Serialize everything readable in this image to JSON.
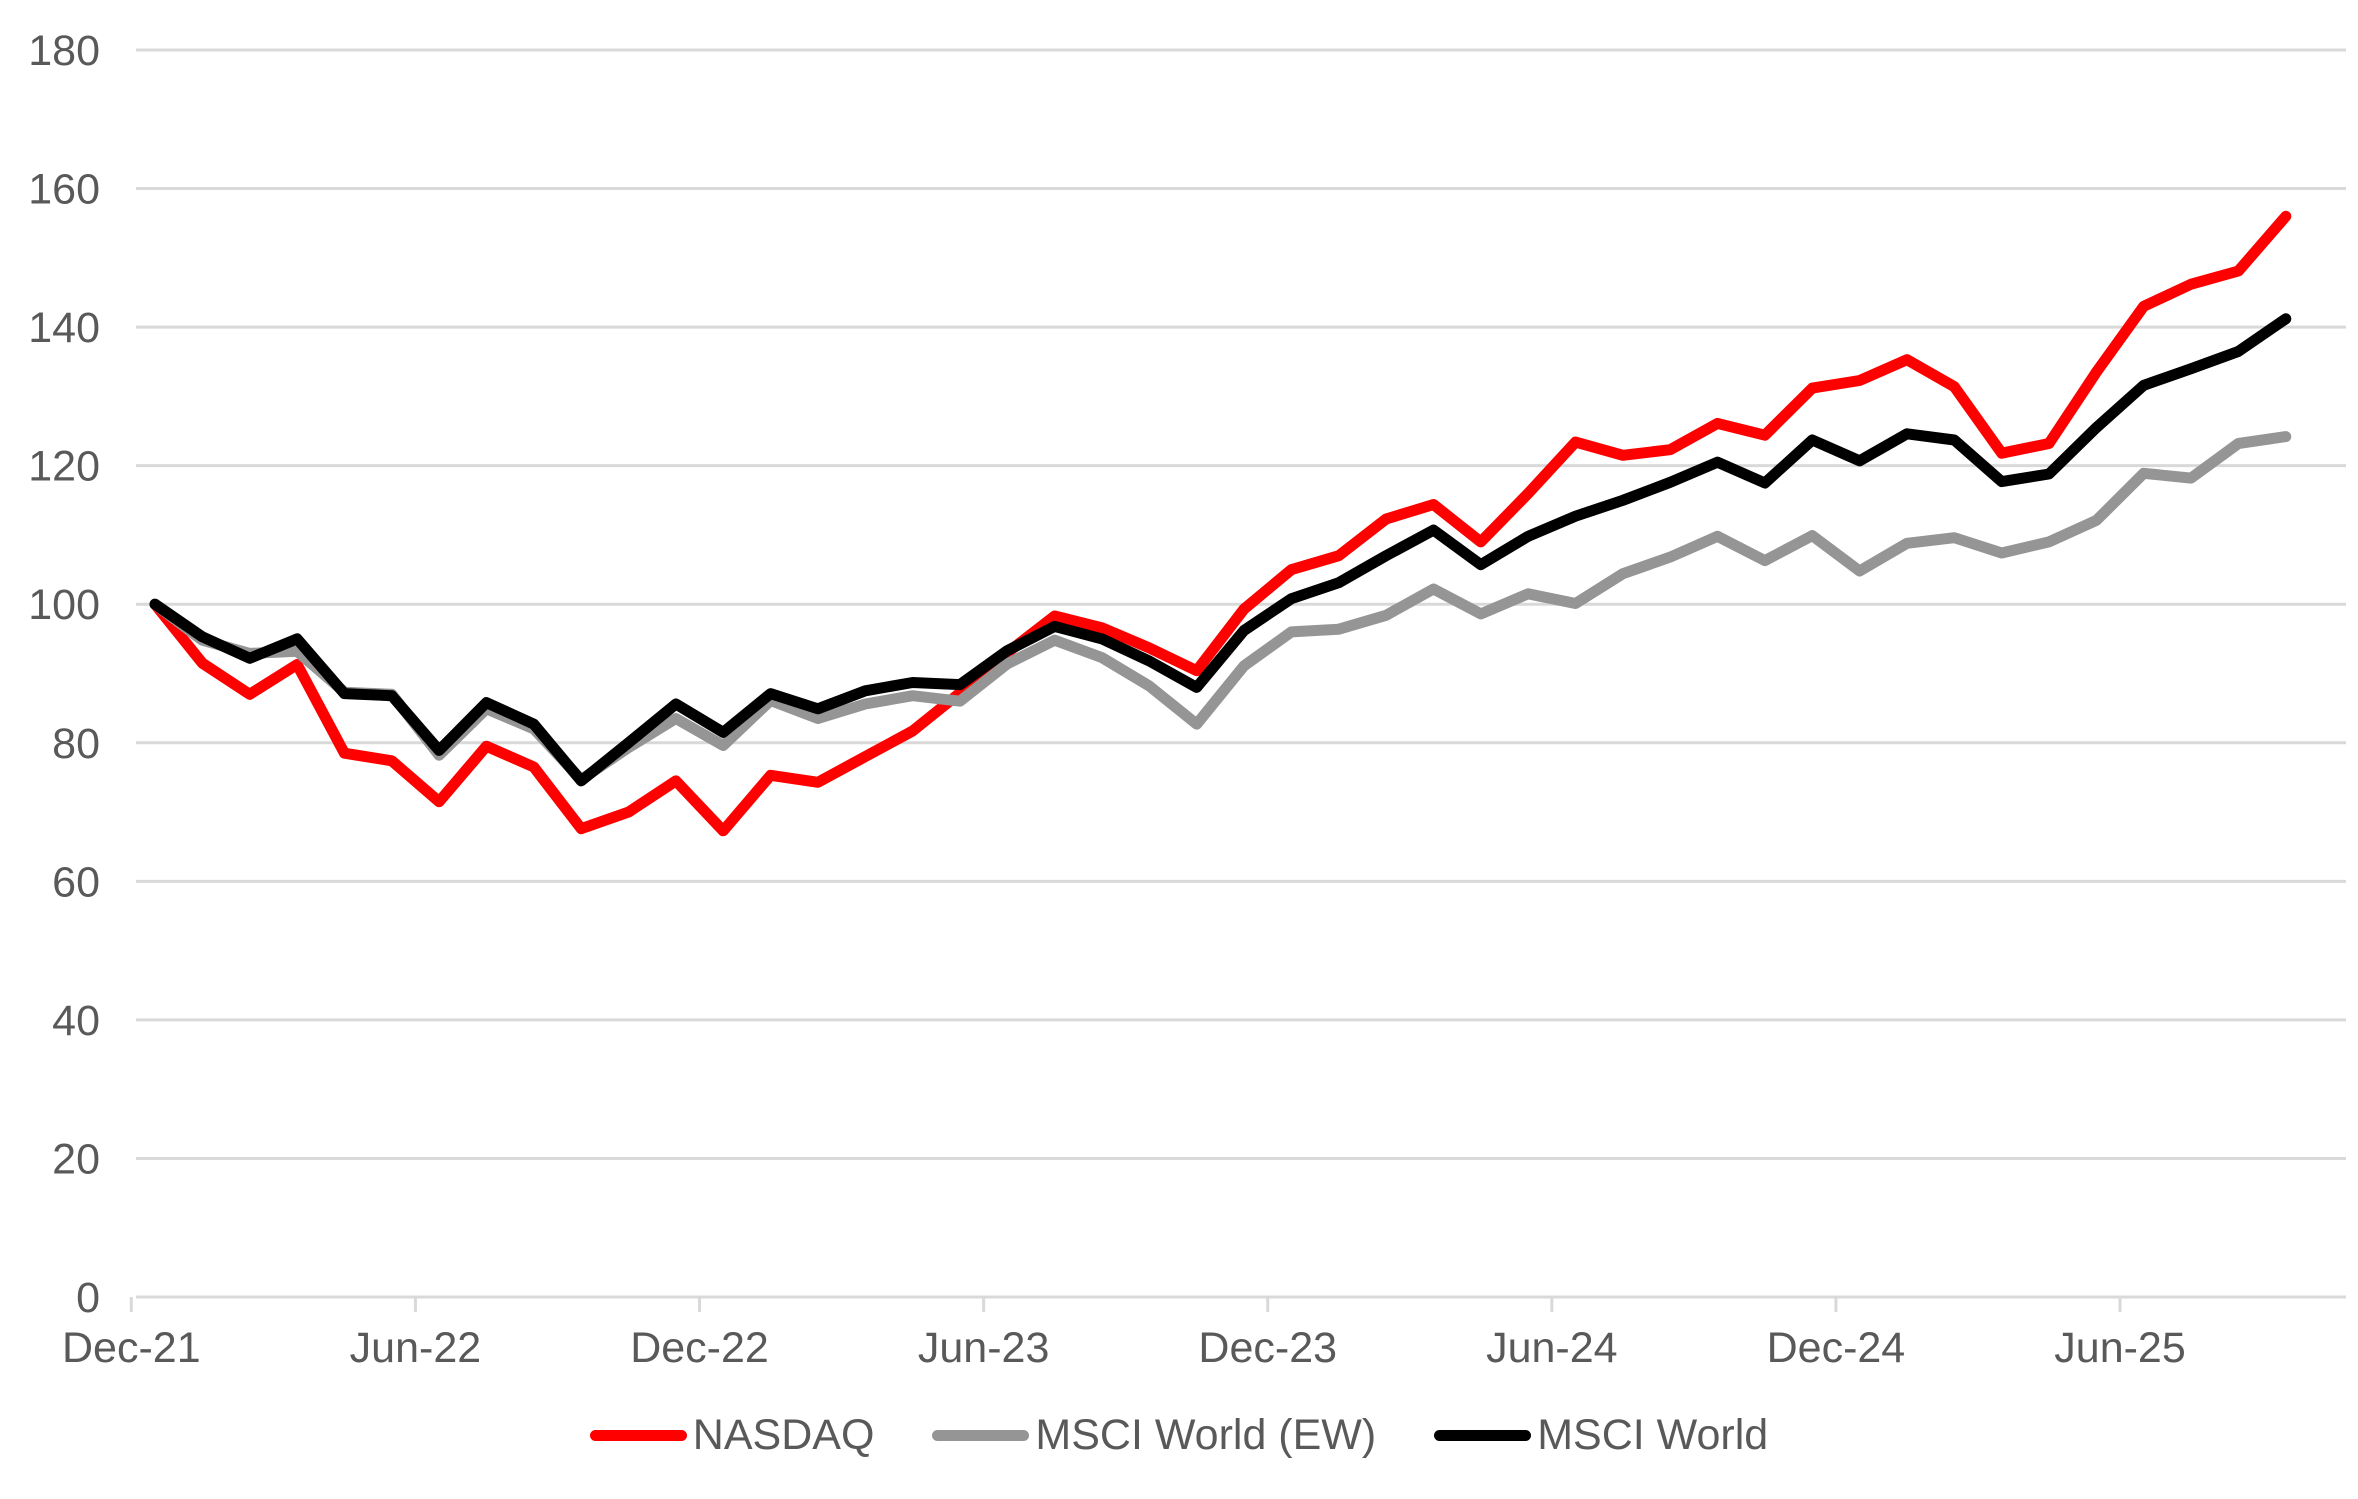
{
  "chart_data": {
    "type": "line",
    "title": "",
    "xlabel": "",
    "ylabel": "",
    "ylim": [
      0,
      180
    ],
    "ytick_step": 20,
    "yticks": [
      "0",
      "20",
      "40",
      "60",
      "80",
      "100",
      "120",
      "140",
      "160",
      "180"
    ],
    "grid": "horizontal",
    "legend_position": "bottom-center",
    "x": [
      "Dec-21",
      "Jan-22",
      "Feb-22",
      "Mar-22",
      "Apr-22",
      "May-22",
      "Jun-22",
      "Jul-22",
      "Aug-22",
      "Sep-22",
      "Oct-22",
      "Nov-22",
      "Dec-22",
      "Jan-23",
      "Feb-23",
      "Mar-23",
      "Apr-23",
      "May-23",
      "Jun-23",
      "Jul-23",
      "Aug-23",
      "Sep-23",
      "Oct-23",
      "Nov-23",
      "Dec-23",
      "Jan-24",
      "Feb-24",
      "Mar-24",
      "Apr-24",
      "May-24",
      "Jun-24",
      "Jul-24",
      "Aug-24",
      "Sep-24",
      "Oct-24",
      "Nov-24",
      "Dec-24",
      "Jan-25",
      "Feb-25",
      "Mar-25",
      "Apr-25",
      "May-25",
      "Jun-25",
      "Jul-25",
      "Aug-25",
      "Sep-25"
    ],
    "x_tick_indices": [
      0,
      6,
      12,
      18,
      24,
      30,
      36,
      42
    ],
    "x_tick_labels": [
      "Dec-21",
      "Jun-22",
      "Dec-22",
      "Jun-23",
      "Dec-23",
      "Jun-24",
      "Dec-24",
      "Jun-25"
    ],
    "series": [
      {
        "name": "NASDAQ",
        "color": "#FF0000",
        "values": [
          100,
          91.5,
          87.0,
          91.3,
          78.5,
          77.4,
          71.5,
          79.5,
          76.5,
          67.6,
          70.0,
          74.5,
          67.3,
          75.3,
          74.3,
          78.0,
          81.7,
          87.2,
          93.0,
          98.3,
          96.6,
          93.7,
          90.4,
          99.3,
          105.0,
          107.0,
          112.3,
          114.4,
          109.0,
          116.0,
          123.4,
          121.5,
          122.3,
          126.1,
          124.4,
          131.2,
          132.3,
          135.3,
          131.4,
          121.8,
          123.2,
          133.5,
          143.0,
          146.2,
          148.1,
          156.0
        ]
      },
      {
        "name": "MSCI World (EW)",
        "color": "#959595",
        "values": [
          100,
          94.8,
          92.9,
          93.2,
          87.3,
          87.0,
          78.2,
          84.9,
          82.0,
          74.7,
          79.3,
          83.5,
          79.6,
          86.1,
          83.5,
          85.6,
          86.8,
          86.0,
          91.4,
          94.8,
          92.3,
          88.2,
          82.7,
          91.1,
          96.0,
          96.4,
          98.4,
          102.2,
          98.6,
          101.5,
          100.1,
          104.4,
          106.8,
          109.8,
          106.3,
          109.9,
          104.8,
          108.8,
          109.6,
          107.4,
          109.0,
          112.1,
          118.9,
          118.2,
          123.2,
          124.2
        ]
      },
      {
        "name": "MSCI World",
        "color": "#000000",
        "values": [
          100,
          95.3,
          92.2,
          95.0,
          87.1,
          86.8,
          78.9,
          85.8,
          82.7,
          74.5,
          80.0,
          85.6,
          81.5,
          87.1,
          84.9,
          87.5,
          88.7,
          88.4,
          93.3,
          96.8,
          95.0,
          91.8,
          88.0,
          96.2,
          100.8,
          103.1,
          107.0,
          110.7,
          105.7,
          109.8,
          112.7,
          115.0,
          117.6,
          120.5,
          117.5,
          123.7,
          120.7,
          124.6,
          123.7,
          117.7,
          118.8,
          125.5,
          131.6,
          134.0,
          136.5,
          141.2
        ]
      }
    ],
    "colors": {
      "gridline": "#D9D9D9",
      "axis_line": "#D9D9D9",
      "tick_label": "#595959",
      "background": "#FFFFFF"
    }
  }
}
